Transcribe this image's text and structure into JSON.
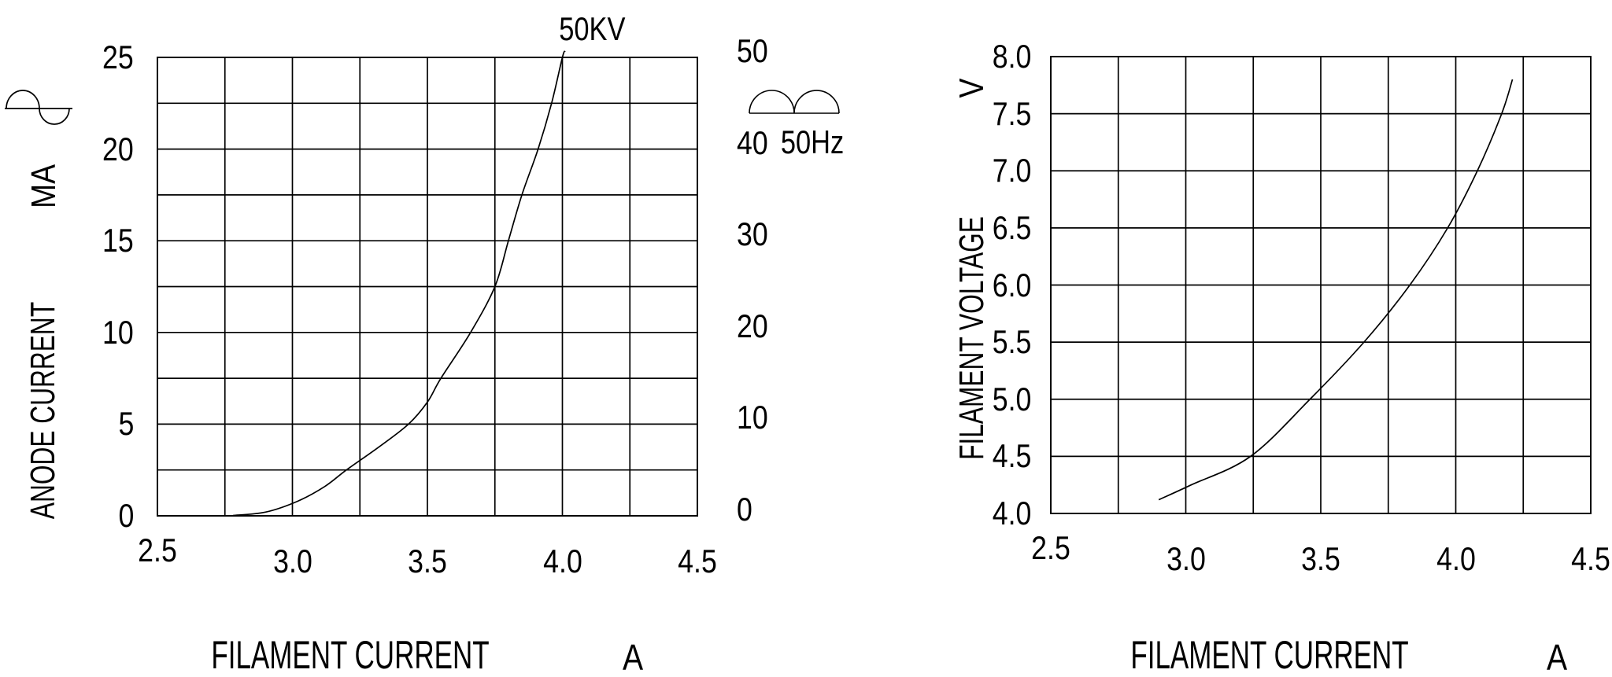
{
  "colors": {
    "background": "#ffffff",
    "ink": "#000000"
  },
  "chart_data": [
    {
      "type": "line",
      "title": "",
      "annotation": "50KV",
      "corner_icon": "sine-wave-icon",
      "grid": true,
      "legend": "none",
      "x_axis": {
        "title": "FILAMENT CURRENT",
        "unit": "A",
        "min": 2.5,
        "max": 4.5,
        "grid_step": 0.25,
        "tick_step": 0.5,
        "tick_labels": [
          "2.5",
          "3.0",
          "3.5",
          "4.0",
          "4.5"
        ]
      },
      "y_axis": {
        "title": "ANODE CURRENT",
        "unit": "MA",
        "min": 0,
        "max": 25,
        "grid_step": 2.5,
        "tick_values": [
          25,
          20,
          15,
          10,
          5,
          0
        ],
        "tick_labels": [
          "25",
          "20",
          "15",
          "10",
          "5",
          "0"
        ]
      },
      "y2_axis": {
        "min": 0,
        "max": 50,
        "tick_values": [
          50,
          40,
          30,
          20,
          10,
          0
        ],
        "tick_labels": [
          "50",
          "40",
          "30",
          "20",
          "10",
          "0"
        ],
        "waveform_label": "50Hz",
        "waveform_icon": "full-wave-rectified-icon"
      },
      "series": [
        {
          "name": "50KV",
          "points": [
            [
              2.78,
              0.02
            ],
            [
              2.9,
              0.2
            ],
            [
              3.02,
              0.8
            ],
            [
              3.12,
              1.6
            ],
            [
              3.2,
              2.5
            ],
            [
              3.32,
              3.75
            ],
            [
              3.43,
              5.0
            ],
            [
              3.5,
              6.2
            ],
            [
              3.55,
              7.5
            ],
            [
              3.66,
              10.0
            ],
            [
              3.75,
              12.5
            ],
            [
              3.8,
              15.0
            ],
            [
              3.85,
              17.5
            ],
            [
              3.91,
              20.0
            ],
            [
              3.96,
              22.5
            ],
            [
              4.0,
              25.0
            ],
            [
              4.01,
              25.35
            ]
          ]
        }
      ]
    },
    {
      "type": "line",
      "title": "",
      "grid": true,
      "legend": "none",
      "x_axis": {
        "title": "FILAMENT CURRENT",
        "unit": "A",
        "min": 2.5,
        "max": 4.5,
        "grid_step": 0.25,
        "tick_step": 0.5,
        "tick_labels": [
          "2.5",
          "3.0",
          "3.5",
          "4.0",
          "4.5"
        ]
      },
      "y_axis": {
        "title": "FILAMENT VOLTAGE",
        "unit": "V",
        "min": 4.0,
        "max": 8.0,
        "grid_step": 0.5,
        "tick_values": [
          8.0,
          7.5,
          7.0,
          6.5,
          6.0,
          5.5,
          5.0,
          4.5,
          4.0
        ],
        "tick_labels": [
          "8.0",
          "7.5",
          "7.0",
          "6.5",
          "6.0",
          "5.5",
          "5.0",
          "4.5",
          "4.0"
        ]
      },
      "series": [
        {
          "name": "filament-voltage",
          "points": [
            [
              2.9,
              4.12
            ],
            [
              3.02,
              4.25
            ],
            [
              3.24,
              4.5
            ],
            [
              3.46,
              5.0
            ],
            [
              3.66,
              5.5
            ],
            [
              3.83,
              6.0
            ],
            [
              3.97,
              6.5
            ],
            [
              4.08,
              7.0
            ],
            [
              4.17,
              7.5
            ],
            [
              4.21,
              7.8
            ]
          ]
        }
      ]
    }
  ]
}
